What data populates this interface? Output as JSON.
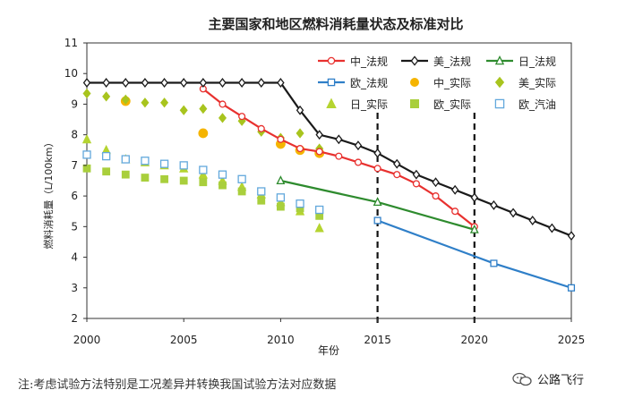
{
  "chart_data": {
    "type": "line",
    "title": "主要国家和地区燃料消耗量状态及标准对比",
    "xlabel": "年份",
    "ylabel": "燃料消耗量（L/100km）",
    "xlim": [
      2000,
      2025
    ],
    "ylim": [
      2,
      11
    ],
    "xticks": [
      2000,
      2005,
      2010,
      2015,
      2020,
      2025
    ],
    "yticks": [
      2,
      3,
      4,
      5,
      6,
      7,
      8,
      9,
      10,
      11
    ],
    "reference_lines_x": [
      2015,
      2020
    ],
    "grid": false,
    "legend_position": "top-right",
    "series": [
      {
        "name": "中_法规",
        "kind": "line",
        "color": "#e8312f",
        "marker": "circle-open",
        "x": [
          2006,
          2007,
          2008,
          2009,
          2010,
          2011,
          2012,
          2013,
          2014,
          2015,
          2016,
          2017,
          2018,
          2019,
          2020
        ],
        "y": [
          9.5,
          9.0,
          8.6,
          8.2,
          7.85,
          7.55,
          7.45,
          7.3,
          7.1,
          6.9,
          6.7,
          6.4,
          6.0,
          5.5,
          5.0
        ]
      },
      {
        "name": "美_法规",
        "kind": "line",
        "color": "#1a1a1a",
        "marker": "diamond-open",
        "x": [
          2000,
          2001,
          2002,
          2003,
          2004,
          2005,
          2006,
          2007,
          2008,
          2009,
          2010,
          2011,
          2012,
          2013,
          2014,
          2015,
          2016,
          2017,
          2018,
          2019,
          2020,
          2021,
          2022,
          2023,
          2024,
          2025
        ],
        "y": [
          9.7,
          9.7,
          9.7,
          9.7,
          9.7,
          9.7,
          9.7,
          9.7,
          9.7,
          9.7,
          9.7,
          8.8,
          8.0,
          7.85,
          7.65,
          7.4,
          7.05,
          6.7,
          6.45,
          6.2,
          5.95,
          5.7,
          5.45,
          5.2,
          4.95,
          4.7
        ]
      },
      {
        "name": "日_法规",
        "kind": "line",
        "color": "#2e8b2e",
        "marker": "triangle-open",
        "x": [
          2010,
          2015,
          2020
        ],
        "y": [
          6.5,
          5.8,
          4.9
        ]
      },
      {
        "name": "欧_法规",
        "kind": "line",
        "color": "#2f7fc8",
        "marker": "square-open",
        "x": [
          2015,
          2021,
          2025
        ],
        "y": [
          5.2,
          3.8,
          3.0
        ]
      },
      {
        "name": "中_实际",
        "kind": "scatter",
        "color": "#f5b400",
        "marker": "circle",
        "x": [
          2002,
          2006,
          2010,
          2011,
          2012
        ],
        "y": [
          9.1,
          8.05,
          7.7,
          7.5,
          7.4
        ]
      },
      {
        "name": "美_实际",
        "kind": "scatter",
        "color": "#a8c41e",
        "marker": "diamond",
        "x": [
          2000,
          2001,
          2002,
          2003,
          2004,
          2005,
          2006,
          2007,
          2008,
          2009,
          2010,
          2011,
          2012
        ],
        "y": [
          9.35,
          9.25,
          9.15,
          9.05,
          9.05,
          8.8,
          8.85,
          8.55,
          8.45,
          8.1,
          7.9,
          8.05,
          7.55
        ]
      },
      {
        "name": "日_实际",
        "kind": "scatter",
        "color": "#b5d430",
        "marker": "triangle",
        "x": [
          2000,
          2001,
          2002,
          2003,
          2004,
          2005,
          2006,
          2007,
          2008,
          2009,
          2010,
          2011,
          2012
        ],
        "y": [
          7.85,
          7.5,
          7.2,
          7.1,
          7.0,
          6.9,
          6.7,
          6.5,
          6.3,
          6.05,
          5.8,
          5.5,
          4.95
        ]
      },
      {
        "name": "欧_实际",
        "kind": "scatter",
        "color": "#a9cf3c",
        "marker": "square",
        "x": [
          2000,
          2001,
          2002,
          2003,
          2004,
          2005,
          2006,
          2007,
          2008,
          2009,
          2010,
          2011,
          2012
        ],
        "y": [
          6.9,
          6.8,
          6.7,
          6.6,
          6.55,
          6.5,
          6.45,
          6.35,
          6.15,
          5.85,
          5.65,
          5.6,
          5.35
        ]
      },
      {
        "name": "欧_汽油",
        "kind": "scatter",
        "color": "#62a8dc",
        "marker": "square-open",
        "x": [
          2000,
          2001,
          2002,
          2003,
          2004,
          2005,
          2006,
          2007,
          2008,
          2009,
          2010,
          2011,
          2012
        ],
        "y": [
          7.35,
          7.3,
          7.2,
          7.15,
          7.05,
          7.0,
          6.85,
          6.7,
          6.55,
          6.15,
          5.95,
          5.75,
          5.55
        ]
      }
    ]
  },
  "note": "注:考虑试验方法特别是工况差异并转换我国试验方法对应数据",
  "brand": "公路飞行"
}
